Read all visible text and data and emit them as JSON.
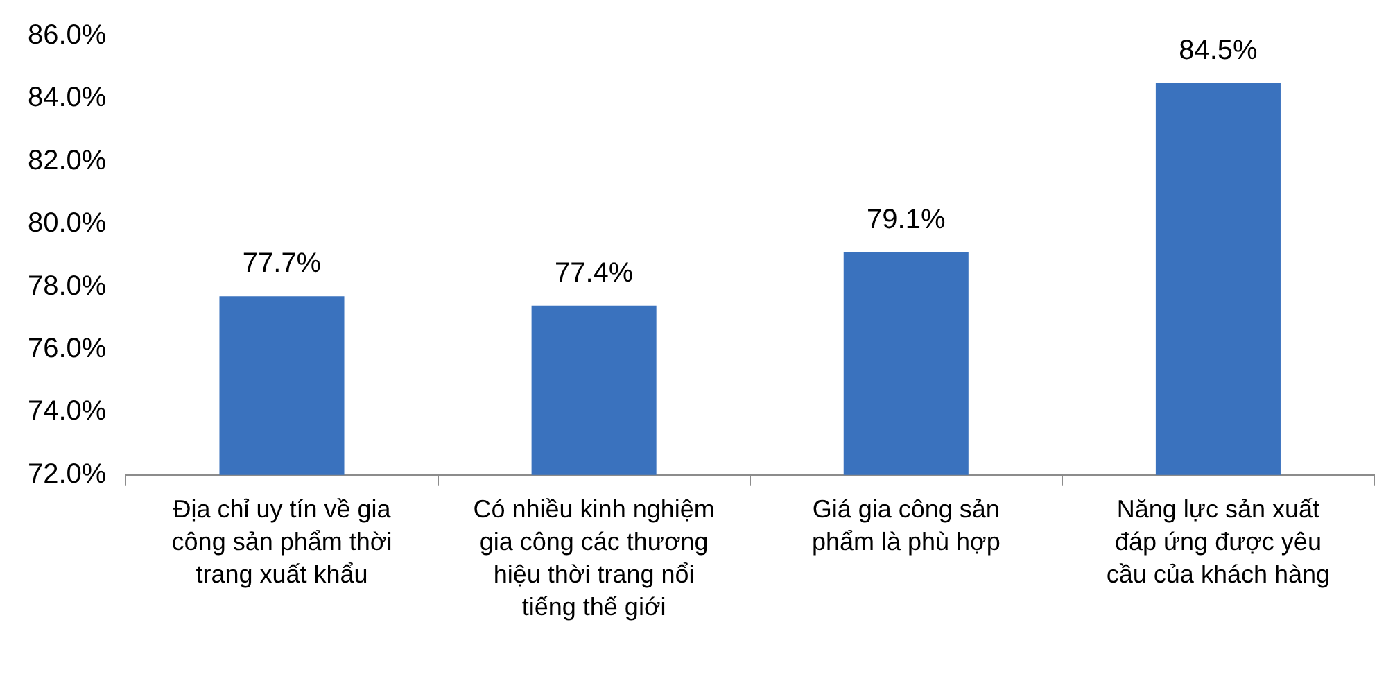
{
  "chart_data": {
    "type": "bar",
    "categories": [
      "Địa chỉ uy tín về gia công sản phẩm thời trang xuất khẩu",
      "Có nhiều kinh nghiệm gia công các thương hiệu thời trang nổi tiếng thế giới",
      "Giá gia công sản phẩm là phù hợp",
      "Năng lực sản xuất đáp ứng được yêu cầu của khách hàng"
    ],
    "values": [
      77.7,
      77.4,
      79.1,
      84.5
    ],
    "value_labels": [
      "77.7%",
      "77.4%",
      "79.1%",
      "84.5%"
    ],
    "color": "#3a72be",
    "ylim": [
      72,
      86
    ],
    "yticks": [
      {
        "value": 72,
        "label": "72.0%"
      },
      {
        "value": 74,
        "label": "74.0%"
      },
      {
        "value": 76,
        "label": "76.0%"
      },
      {
        "value": 78,
        "label": "78.0%"
      },
      {
        "value": 80,
        "label": "80.0%"
      },
      {
        "value": 82,
        "label": "82.0%"
      },
      {
        "value": 84,
        "label": "84.0%"
      },
      {
        "value": 86,
        "label": "86.0%"
      }
    ],
    "grid": false,
    "legend": false
  }
}
